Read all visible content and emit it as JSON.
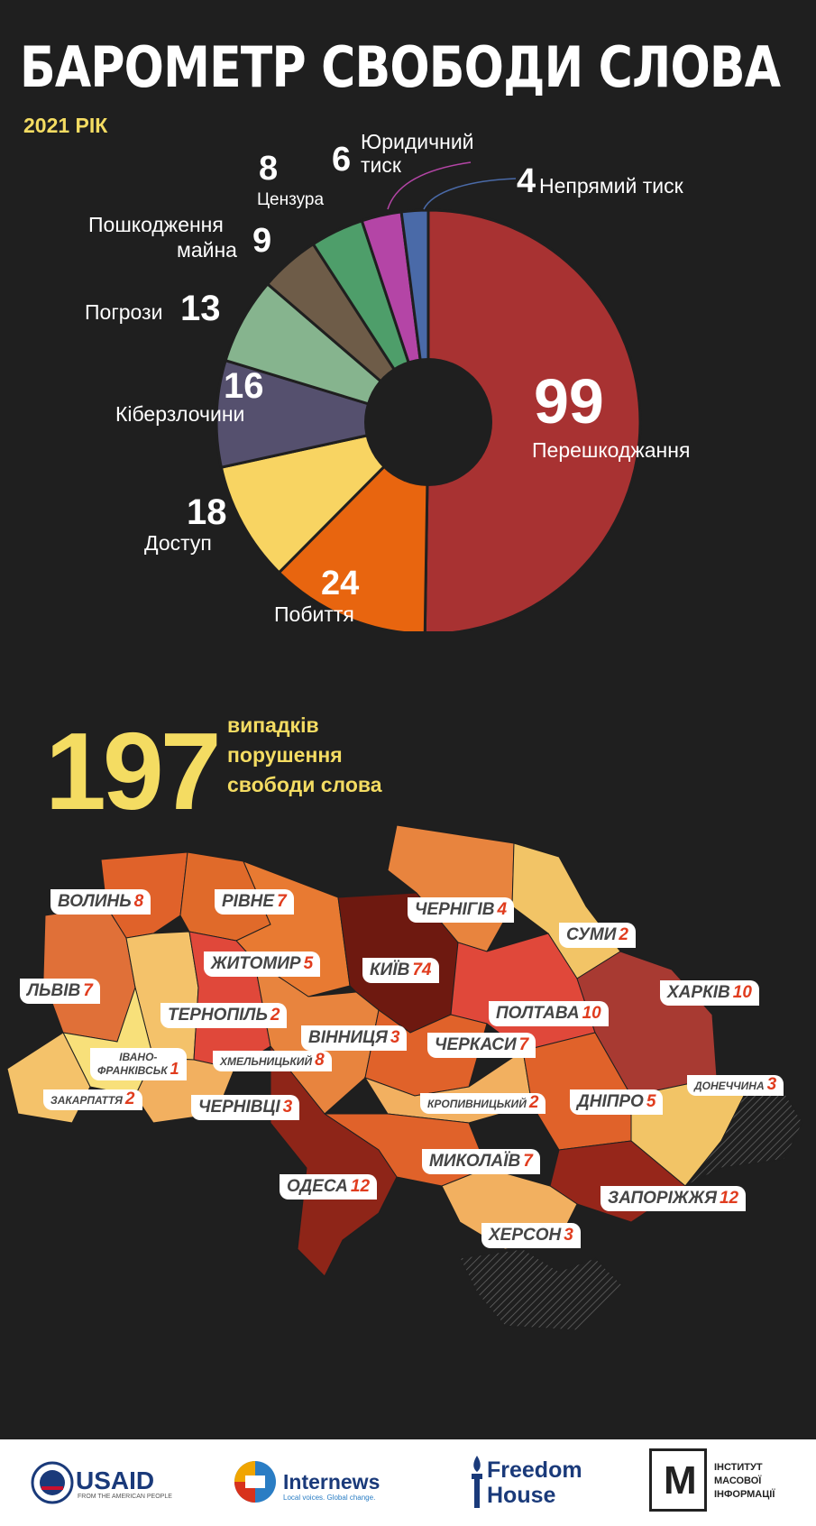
{
  "title": "БАРОМЕТР СВОБОДИ СЛОВА",
  "year": "2021 РІК",
  "total": {
    "number": "197",
    "line1": "випадків",
    "line2": "порушення",
    "line3": "свободи слова"
  },
  "colors": {
    "background": "#1f1f1f",
    "accent": "#f4dc62",
    "count": "#e03c1e"
  },
  "chart_data": {
    "type": "pie",
    "donut": true,
    "slices": [
      {
        "label": "Перешкоджання",
        "value": 99,
        "color": "#a83232"
      },
      {
        "label": "Побиття",
        "value": 24,
        "color": "#e8650f"
      },
      {
        "label": "Доступ",
        "value": 18,
        "color": "#f8d462"
      },
      {
        "label": "Кіберзлочини",
        "value": 16,
        "color": "#55506e"
      },
      {
        "label": "Погрози",
        "value": 13,
        "color": "#86b48e"
      },
      {
        "label": "Пошкодження майна",
        "value": 9,
        "color": "#6e5c48"
      },
      {
        "label": "Цензура",
        "value": 8,
        "color": "#4e9e6a"
      },
      {
        "label": "Юридичний тиск",
        "value": 6,
        "color": "#b445a6"
      },
      {
        "label": "Непрямий тиск",
        "value": 4,
        "color": "#4a6aa8"
      }
    ]
  },
  "labels": {
    "l0": {
      "num": "99",
      "text": "Перешкоджання"
    },
    "l1": {
      "num": "24",
      "text": "Побиття"
    },
    "l2": {
      "num": "18",
      "text": "Доступ"
    },
    "l3": {
      "num": "16",
      "text": "Кіберзлочини"
    },
    "l4": {
      "num": "13",
      "text": "Погрози"
    },
    "l5": {
      "num": "9",
      "text1": "Пошкодження",
      "text2": "майна"
    },
    "l6": {
      "num": "8",
      "text": "Цензура"
    },
    "l7": {
      "num": "6",
      "text1": "Юридичний",
      "text2": "тиск"
    },
    "l8": {
      "num": "4",
      "text": "Непрямий тиск"
    }
  },
  "regions": [
    {
      "name": "ВОЛИНЬ",
      "count": "8"
    },
    {
      "name": "РІВНЕ",
      "count": "7"
    },
    {
      "name": "ЧЕРНІГІВ",
      "count": "4"
    },
    {
      "name": "СУМИ",
      "count": "2"
    },
    {
      "name": "ЖИТОМИР",
      "count": "5"
    },
    {
      "name": "КИЇВ",
      "count": "74"
    },
    {
      "name": "ЛЬВІВ",
      "count": "7"
    },
    {
      "name": "ХАРКІВ",
      "count": "10"
    },
    {
      "name": "ТЕРНОПІЛЬ",
      "count": "2"
    },
    {
      "name": "ПОЛТАВА",
      "count": "10"
    },
    {
      "name": "ВІННИЦЯ",
      "count": "3"
    },
    {
      "name": "ЧЕРКАСИ",
      "count": "7"
    },
    {
      "name": "ІВАНО-ФРАНКІВСЬК",
      "line1": "ІВАНО-",
      "line2": "ФРАНКІВСЬК",
      "count": "1"
    },
    {
      "name": "ХМЕЛЬНИЦЬКИЙ",
      "count": "8"
    },
    {
      "name": "ДОНЕЧЧИНА",
      "count": "3"
    },
    {
      "name": "ЗАКАРПАТТЯ",
      "count": "2"
    },
    {
      "name": "ЧЕРНІВЦІ",
      "count": "3"
    },
    {
      "name": "КРОПИВНИЦЬКИЙ",
      "count": "2"
    },
    {
      "name": "ДНІПРО",
      "count": "5"
    },
    {
      "name": "МИКОЛАЇВ",
      "count": "7"
    },
    {
      "name": "ОДЕСА",
      "count": "12"
    },
    {
      "name": "ЗАПОРІЖЖЯ",
      "count": "12"
    },
    {
      "name": "ХЕРСОН",
      "count": "3"
    }
  ],
  "footer": {
    "usaid": "USAID",
    "usaid_sub": "FROM THE AMERICAN PEOPLE",
    "internews": "Internews",
    "internews_sub": "Local voices. Global change.",
    "fh1": "Freedom",
    "fh2": "House",
    "imi_letter": "М",
    "imi1": "ІНСТИТУТ",
    "imi2": "МАСОВОЇ",
    "imi3": "ІНФОРМАЦІЇ"
  }
}
